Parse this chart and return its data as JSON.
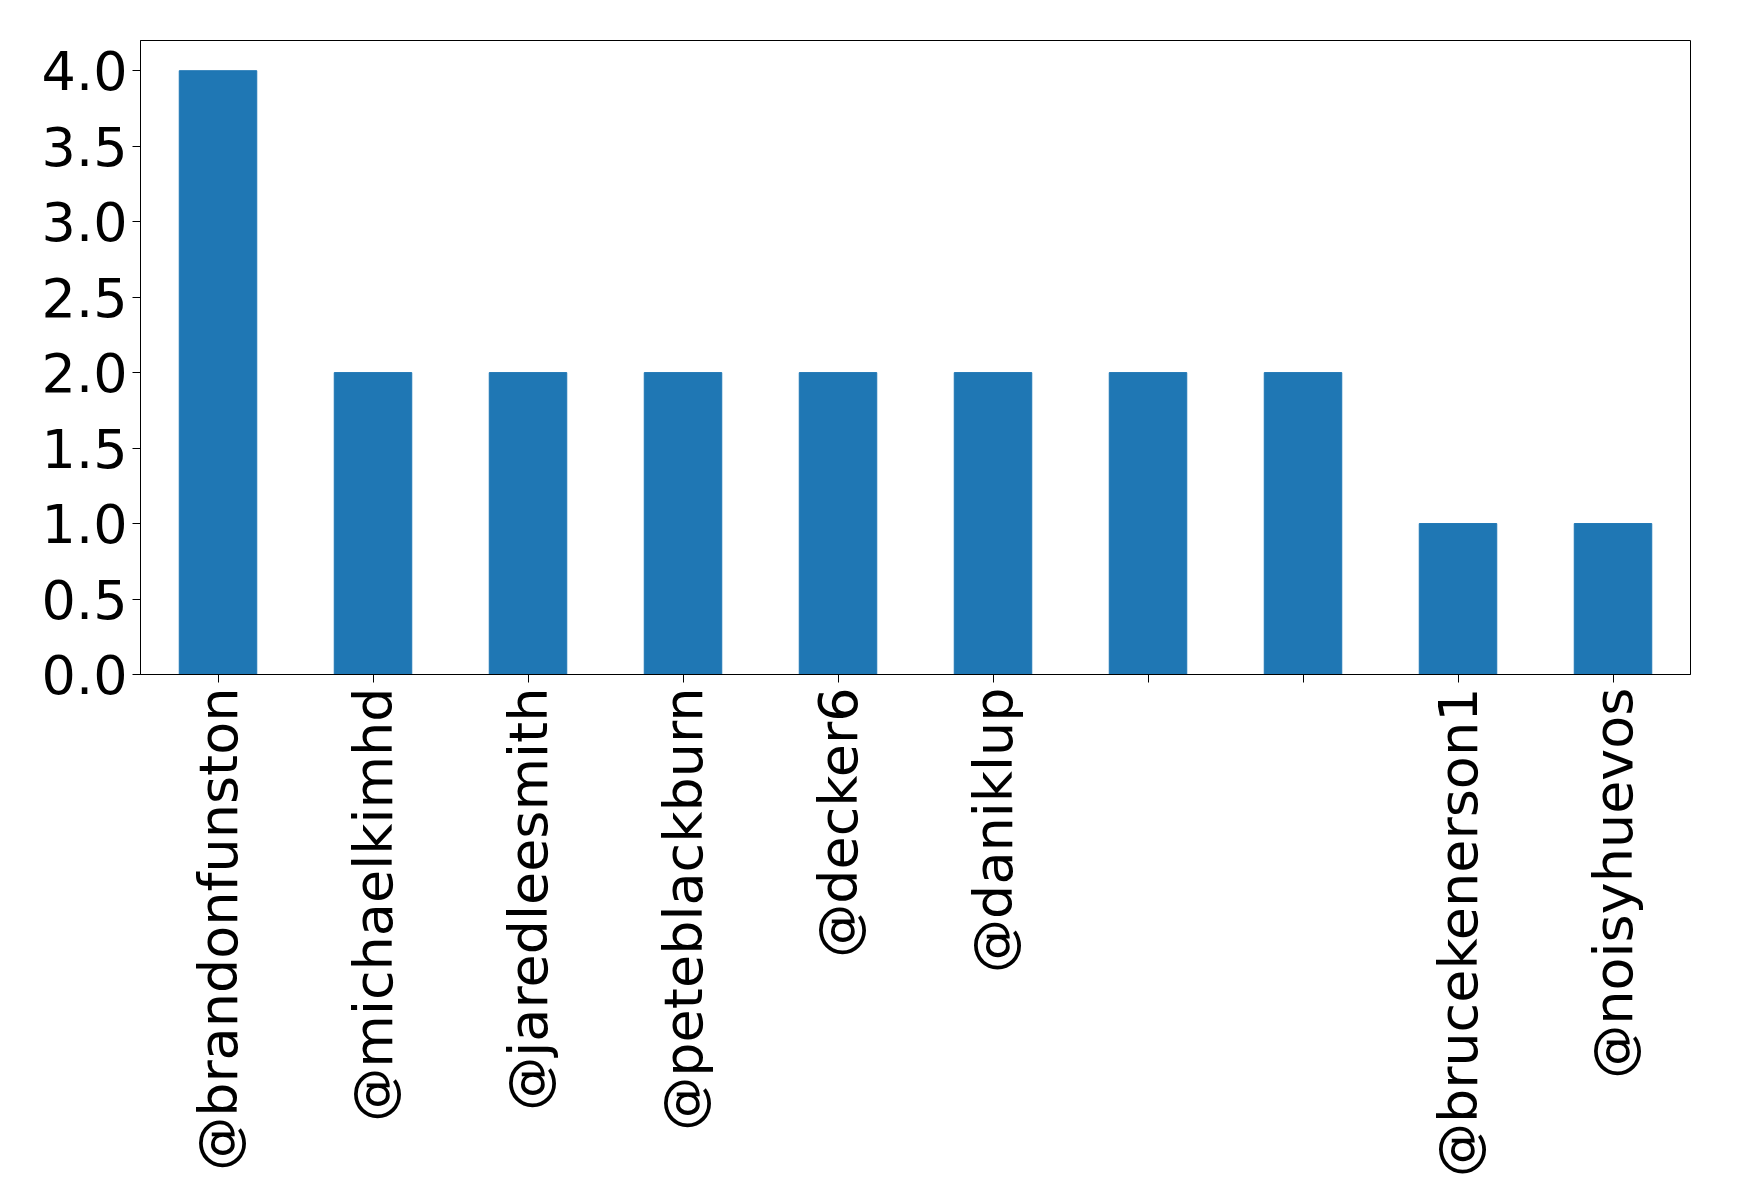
{
  "chart_data": {
    "type": "bar",
    "categories": [
      "@brandonfunston",
      "@michaelkimhd",
      "@jaredleesmith",
      "@peteblackburn",
      "@decker6",
      "@daniklup",
      null,
      null,
      "@brucekenerson1",
      "@noisyhuevos"
    ],
    "values": [
      4,
      2,
      2,
      2,
      2,
      2,
      2,
      2,
      1,
      1
    ],
    "color": "#1f77b4",
    "ylim": [
      0,
      4.2
    ],
    "yticks": [
      {
        "value": 0,
        "label": "0.0"
      },
      {
        "value": 0.5,
        "label": "0.5"
      },
      {
        "value": 1,
        "label": "1.0"
      },
      {
        "value": 1.5,
        "label": "1.5"
      },
      {
        "value": 2,
        "label": "2.0"
      },
      {
        "value": 2.5,
        "label": "2.5"
      },
      {
        "value": 3,
        "label": "3.0"
      },
      {
        "value": 3.5,
        "label": "3.5"
      },
      {
        "value": 4,
        "label": "4.0"
      }
    ],
    "grid": false
  }
}
